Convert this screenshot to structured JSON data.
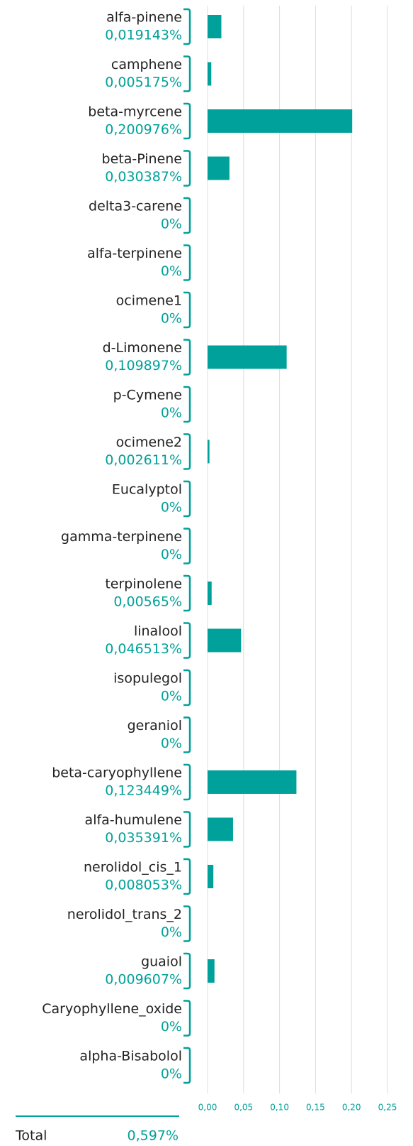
{
  "chart_data": {
    "type": "bar",
    "orientation": "horizontal",
    "color": "#00a19a",
    "categories": [
      "alfa-pinene",
      "camphene",
      "beta-myrcene",
      "beta-Pinene",
      "delta3-carene",
      "alfa-terpinene",
      "ocimene1",
      "d-Limonene",
      "p-Cymene",
      "ocimene2",
      "Eucalyptol",
      "gamma-terpinene",
      "terpinolene",
      "linalool",
      "isopulegol",
      "geraniol",
      "beta-caryophyllene",
      "alfa-humulene",
      "nerolidol_cis_1",
      "nerolidol_trans_2",
      "guaiol",
      "Caryophyllene_oxide",
      "alpha-Bisabolol"
    ],
    "values": [
      0.019143,
      0.005175,
      0.200976,
      0.030387,
      0,
      0,
      0,
      0.109897,
      0,
      0.002611,
      0,
      0,
      0.00565,
      0.046513,
      0,
      0,
      0.123449,
      0.035391,
      0.008053,
      0,
      0.009607,
      0,
      0
    ],
    "value_labels": [
      "0,019143%",
      "0,005175%",
      "0,200976%",
      "0,030387%",
      "0%",
      "0%",
      "0%",
      "0,109897%",
      "0%",
      "0,002611%",
      "0%",
      "0%",
      "0,00565%",
      "0,046513%",
      "0%",
      "0%",
      "0,123449%",
      "0,035391%",
      "0,008053%",
      "0%",
      "0,009607%",
      "0%",
      "0%"
    ],
    "xlim": [
      0,
      0.25
    ],
    "xticks": [
      {
        "value": 0,
        "label": "0,00"
      },
      {
        "value": 0.05,
        "label": "0,05"
      },
      {
        "value": 0.1,
        "label": "0,10"
      },
      {
        "value": 0.15,
        "label": "0,15"
      },
      {
        "value": 0.2,
        "label": "0,20"
      },
      {
        "value": 0.25,
        "label": "0,25"
      }
    ],
    "grid": true,
    "total": {
      "label": "Total",
      "value": "0,597%"
    }
  }
}
